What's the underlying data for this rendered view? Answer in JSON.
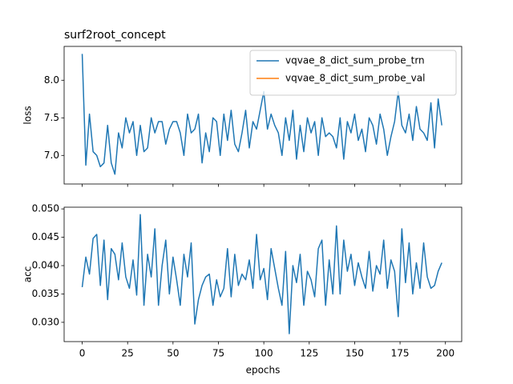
{
  "chart_data": [
    {
      "type": "line",
      "title": "surf2root_concept",
      "y_label": "loss",
      "x": [
        0,
        2,
        4,
        6,
        8,
        10,
        12,
        14,
        16,
        18,
        20,
        22,
        24,
        26,
        28,
        30,
        32,
        34,
        36,
        38,
        40,
        42,
        44,
        46,
        48,
        50,
        52,
        54,
        56,
        58,
        60,
        62,
        64,
        66,
        68,
        70,
        72,
        74,
        76,
        78,
        80,
        82,
        84,
        86,
        88,
        90,
        92,
        94,
        96,
        98,
        100,
        102,
        104,
        106,
        108,
        110,
        112,
        114,
        116,
        118,
        120,
        122,
        124,
        126,
        128,
        130,
        132,
        134,
        136,
        138,
        140,
        142,
        144,
        146,
        148,
        150,
        152,
        154,
        156,
        158,
        160,
        162,
        164,
        166,
        168,
        170,
        172,
        174,
        176,
        178,
        180,
        182,
        184,
        186,
        188,
        190,
        192,
        194,
        196,
        198
      ],
      "series": [
        {
          "name": "vqvae_8_dict_sum_probe_trn",
          "color": "#1f77b4",
          "values": [
            8.35,
            6.87,
            7.55,
            7.05,
            7.0,
            6.85,
            6.9,
            7.4,
            6.9,
            6.75,
            7.3,
            7.1,
            7.5,
            7.3,
            7.45,
            7.0,
            7.4,
            7.05,
            7.1,
            7.5,
            7.3,
            7.45,
            7.45,
            7.15,
            7.35,
            7.45,
            7.45,
            7.3,
            7.0,
            7.55,
            7.3,
            7.35,
            7.55,
            6.9,
            7.3,
            7.05,
            7.5,
            7.45,
            7.0,
            7.55,
            7.2,
            7.6,
            7.15,
            7.05,
            7.3,
            7.6,
            7.1,
            7.45,
            7.35,
            7.6,
            7.85,
            7.35,
            7.55,
            7.4,
            7.3,
            7.0,
            7.5,
            7.2,
            7.6,
            6.95,
            7.4,
            7.05,
            7.5,
            7.3,
            7.45,
            7.0,
            7.5,
            7.25,
            7.3,
            7.25,
            7.1,
            7.5,
            6.95,
            7.45,
            7.3,
            7.55,
            7.2,
            7.35,
            7.05,
            7.5,
            7.4,
            7.15,
            7.55,
            7.35,
            7.0,
            7.25,
            7.45,
            7.85,
            7.4,
            7.3,
            7.55,
            7.2,
            7.65,
            7.35,
            7.3,
            7.2,
            7.7,
            7.1,
            7.75,
            7.4
          ]
        },
        {
          "name": "vqvae_8_dict_sum_probe_val",
          "color": "#ff7f0e",
          "values": [
            null,
            null,
            null,
            null,
            null,
            null,
            null,
            null,
            null,
            null,
            null,
            null,
            null,
            null,
            null,
            null,
            null,
            null,
            null,
            null,
            null,
            null,
            null,
            null,
            null,
            null,
            null,
            null,
            null,
            null,
            null,
            null,
            null,
            null,
            null,
            null,
            null,
            null,
            null,
            null,
            null,
            null,
            null,
            null,
            null,
            null,
            null,
            null,
            null,
            null,
            null,
            null,
            null,
            null,
            null,
            null,
            null,
            null,
            null,
            null,
            null,
            null,
            null,
            null,
            null,
            null,
            null,
            null,
            null,
            null,
            null,
            null,
            null,
            null,
            null,
            null,
            null,
            null,
            null,
            null,
            null,
            null,
            null,
            null,
            null,
            null,
            null,
            null,
            null,
            null,
            null,
            null,
            null,
            null,
            null,
            null,
            null,
            null,
            null,
            null
          ]
        }
      ],
      "xlim": [
        -9.95,
        208.95
      ],
      "ylim": [
        6.62,
        8.45
      ],
      "yticks": [
        {
          "value": 7.0,
          "label": "7.0"
        },
        {
          "value": 7.5,
          "label": "7.5"
        },
        {
          "value": 8.0,
          "label": "8.0"
        }
      ],
      "legend": "upper right"
    },
    {
      "type": "line",
      "y_label": "acc",
      "x_label": "epochs",
      "x": [
        0,
        2,
        4,
        6,
        8,
        10,
        12,
        14,
        16,
        18,
        20,
        22,
        24,
        26,
        28,
        30,
        32,
        34,
        36,
        38,
        40,
        42,
        44,
        46,
        48,
        50,
        52,
        54,
        56,
        58,
        60,
        62,
        64,
        66,
        68,
        70,
        72,
        74,
        76,
        78,
        80,
        82,
        84,
        86,
        88,
        90,
        92,
        94,
        96,
        98,
        100,
        102,
        104,
        106,
        108,
        110,
        112,
        114,
        116,
        118,
        120,
        122,
        124,
        126,
        128,
        130,
        132,
        134,
        136,
        138,
        140,
        142,
        144,
        146,
        148,
        150,
        152,
        154,
        156,
        158,
        160,
        162,
        164,
        166,
        168,
        170,
        172,
        174,
        176,
        178,
        180,
        182,
        184,
        186,
        188,
        190,
        192,
        194,
        196,
        198
      ],
      "series": [
        {
          "color": "#1f77b4",
          "values": [
            0.0362,
            0.0415,
            0.0385,
            0.0448,
            0.0455,
            0.0365,
            0.0445,
            0.034,
            0.043,
            0.042,
            0.0375,
            0.044,
            0.038,
            0.036,
            0.041,
            0.0348,
            0.049,
            0.033,
            0.042,
            0.038,
            0.0465,
            0.033,
            0.04,
            0.0445,
            0.035,
            0.0415,
            0.0375,
            0.033,
            0.042,
            0.038,
            0.044,
            0.0297,
            0.034,
            0.0365,
            0.038,
            0.0385,
            0.033,
            0.0375,
            0.0345,
            0.036,
            0.043,
            0.0345,
            0.042,
            0.0365,
            0.0385,
            0.0375,
            0.041,
            0.036,
            0.0455,
            0.0375,
            0.0395,
            0.034,
            0.043,
            0.0395,
            0.036,
            0.033,
            0.0425,
            0.028,
            0.04,
            0.037,
            0.042,
            0.033,
            0.039,
            0.0375,
            0.0345,
            0.043,
            0.0445,
            0.033,
            0.041,
            0.035,
            0.047,
            0.035,
            0.0445,
            0.039,
            0.042,
            0.0365,
            0.0405,
            0.038,
            0.036,
            0.0425,
            0.0355,
            0.04,
            0.0385,
            0.0445,
            0.036,
            0.041,
            0.039,
            0.031,
            0.0465,
            0.037,
            0.044,
            0.035,
            0.0405,
            0.036,
            0.044,
            0.038,
            0.036,
            0.0365,
            0.039,
            0.0405
          ]
        }
      ],
      "xlim": [
        -9.95,
        208.95
      ],
      "ylim": [
        0.0266,
        0.0503
      ],
      "xticks": [
        0,
        25,
        50,
        75,
        100,
        125,
        150,
        175,
        200
      ],
      "yticks": [
        {
          "value": 0.03,
          "label": "0.030"
        },
        {
          "value": 0.035,
          "label": "0.035"
        },
        {
          "value": 0.04,
          "label": "0.040"
        },
        {
          "value": 0.045,
          "label": "0.045"
        },
        {
          "value": 0.05,
          "label": "0.050"
        }
      ]
    }
  ]
}
